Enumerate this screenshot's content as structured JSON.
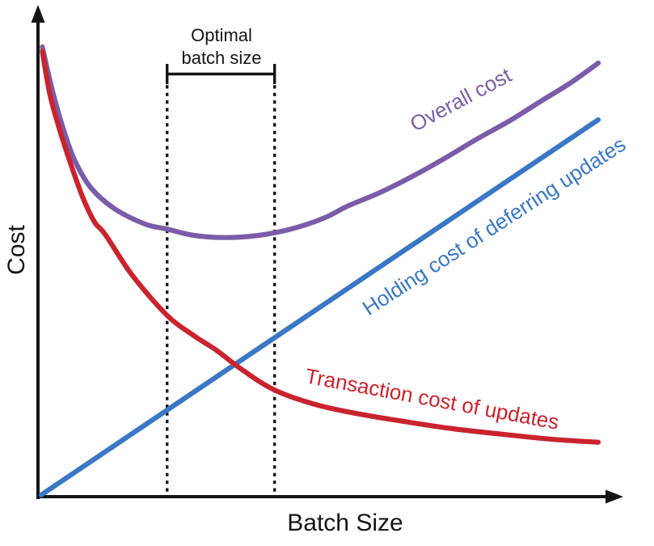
{
  "figure": {
    "background": "#ffffff",
    "axis_color": "#151515"
  },
  "labels": {
    "y_axis": "Cost",
    "x_axis": "Batch Size",
    "optimal_line1": "Optimal",
    "optimal_line2": "batch size"
  },
  "colors": {
    "overall": "#7a5ca8",
    "holding": "#3a77c4",
    "transaction": "#c9242e",
    "axis": "#151515"
  },
  "chart_data": {
    "type": "line",
    "title": "",
    "xlabel": "Batch Size",
    "ylabel": "Cost",
    "x_range": [
      0,
      10
    ],
    "y_range": [
      0,
      10
    ],
    "grid": false,
    "axis_tick_labels": false,
    "legend_position": "inline-rotated-labels",
    "series": [
      {
        "name": "Overall cost",
        "color": "#7a5ca8",
        "x": [
          0.02,
          0.2,
          0.39,
          0.6,
          0.89,
          1.32,
          1.87,
          2.26,
          2.74,
          3.32,
          3.9,
          4.48,
          5.07,
          5.5,
          6.08,
          6.66,
          7.24,
          7.82,
          8.4,
          8.98,
          9.49,
          10
        ],
        "y": [
          10.0,
          9.03,
          8.2,
          7.48,
          6.87,
          6.4,
          6.06,
          5.95,
          5.81,
          5.76,
          5.81,
          5.95,
          6.19,
          6.46,
          6.76,
          7.12,
          7.52,
          7.95,
          8.35,
          8.8,
          9.19,
          9.64
        ]
      },
      {
        "name": "Holding cost of deferring updates",
        "color": "#3a77c4",
        "x": [
          0,
          10
        ],
        "y": [
          0.04,
          8.38
        ]
      },
      {
        "name": "Transaction cost of updates",
        "color": "#c9242e",
        "x": [
          0.02,
          0.16,
          0.35,
          0.54,
          0.75,
          0.96,
          1.15,
          1.63,
          2.26,
          2.74,
          3.14,
          3.61,
          4.19,
          4.92,
          5.65,
          6.52,
          7.39,
          8.26,
          9.13,
          10
        ],
        "y": [
          9.9,
          8.92,
          8.08,
          7.36,
          6.64,
          6.1,
          5.83,
          4.93,
          4.03,
          3.58,
          3.26,
          2.82,
          2.37,
          2.05,
          1.85,
          1.67,
          1.51,
          1.39,
          1.28,
          1.21
        ]
      }
    ],
    "annotations": [
      {
        "text": "Optimal batch size",
        "type": "range-bracket-with-dotted-lines",
        "x_range": [
          2.26,
          4.19
        ]
      }
    ]
  }
}
